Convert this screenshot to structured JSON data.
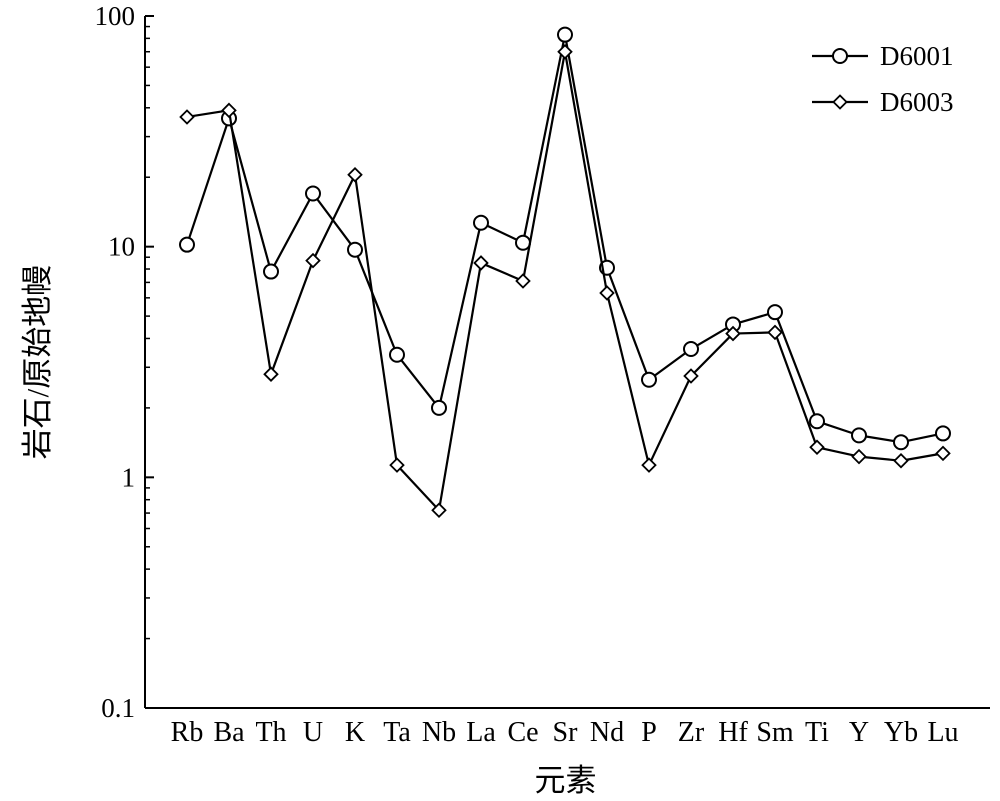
{
  "chart_data": {
    "type": "line",
    "title": "",
    "xlabel": "元素",
    "ylabel": "岩石/原始地幔",
    "yscale": "log",
    "ylim": [
      0.1,
      100
    ],
    "yticks": [
      "100",
      "10",
      "1",
      "0.1"
    ],
    "categories": [
      "Rb",
      "Ba",
      "Th",
      "U",
      "K",
      "Ta",
      "Nb",
      "La",
      "Ce",
      "Sr",
      "Nd",
      "P",
      "Zr",
      "Hf",
      "Sm",
      "Ti",
      "Y",
      "Yb",
      "Lu"
    ],
    "series": [
      {
        "name": "D6001",
        "marker": "circle",
        "values": [
          10.2,
          36,
          7.8,
          17,
          9.7,
          3.4,
          2.0,
          12.7,
          10.4,
          83,
          8.1,
          2.65,
          3.6,
          4.6,
          5.2,
          1.75,
          1.52,
          1.42,
          1.55
        ]
      },
      {
        "name": "D6003",
        "marker": "diamond",
        "values": [
          36.5,
          39,
          2.8,
          8.7,
          20.5,
          1.13,
          0.72,
          8.5,
          7.1,
          70,
          6.3,
          1.13,
          2.75,
          4.2,
          4.25,
          1.35,
          1.23,
          1.18,
          1.27
        ]
      }
    ],
    "legend": {
      "position": "top-right"
    },
    "grid": false
  }
}
